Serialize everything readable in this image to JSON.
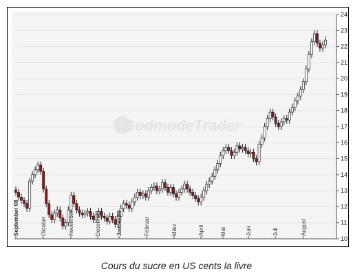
{
  "caption": "Cours du sucre en US cents la livre",
  "watermark": "GodmodeTrader",
  "chart_data": {
    "type": "candlestick",
    "title": "",
    "xlabel": "",
    "ylabel": "",
    "ylim": [
      10,
      24
    ],
    "y_ticks": [
      10,
      11,
      12,
      13,
      14,
      15,
      16,
      17,
      18,
      19,
      20,
      21,
      22,
      23,
      24
    ],
    "x_tick_labels": [
      "September 08",
      "Oktober",
      "November",
      "Dezember",
      "Januar 09",
      "Februar",
      "März",
      "April",
      "Mai",
      "Juni",
      "Juli",
      "August"
    ],
    "grid": true,
    "colors": {
      "up": "#ffffff",
      "down": "#8b1a1a",
      "wick": "#222222",
      "grid": "#e3e3e3"
    },
    "series": [
      12.9,
      12.6,
      12.4,
      12.2,
      11.9,
      13.6,
      14.0,
      14.3,
      14.6,
      14.2,
      13.1,
      12.2,
      11.5,
      11.2,
      11.6,
      11.8,
      11.3,
      10.8,
      11.0,
      11.8,
      12.7,
      12.2,
      11.8,
      11.6,
      11.5,
      11.6,
      11.7,
      11.4,
      11.2,
      11.5,
      11.7,
      11.4,
      11.3,
      11.1,
      11.4,
      11.2,
      10.9,
      11.4,
      11.9,
      12.2,
      12.1,
      11.9,
      12.3,
      12.6,
      12.9,
      12.7,
      12.8,
      12.6,
      13.0,
      13.2,
      13.3,
      13.0,
      13.1,
      13.5,
      13.2,
      12.9,
      13.2,
      12.8,
      12.6,
      12.9,
      13.1,
      13.4,
      13.1,
      12.9,
      12.7,
      12.5,
      12.3,
      12.6,
      13.0,
      13.4,
      13.6,
      13.9,
      14.3,
      14.7,
      15.2,
      15.5,
      15.7,
      15.5,
      15.2,
      15.4,
      15.8,
      15.6,
      15.7,
      15.5,
      15.3,
      15.4,
      15.0,
      14.8,
      15.9,
      16.3,
      17.0,
      17.5,
      17.9,
      17.6,
      17.2,
      17.0,
      17.3,
      17.5,
      17.4,
      17.9,
      18.2,
      18.6,
      18.9,
      19.3,
      19.8,
      20.6,
      21.5,
      22.3,
      22.8,
      22.2,
      21.9,
      22.1,
      22.4
    ]
  }
}
